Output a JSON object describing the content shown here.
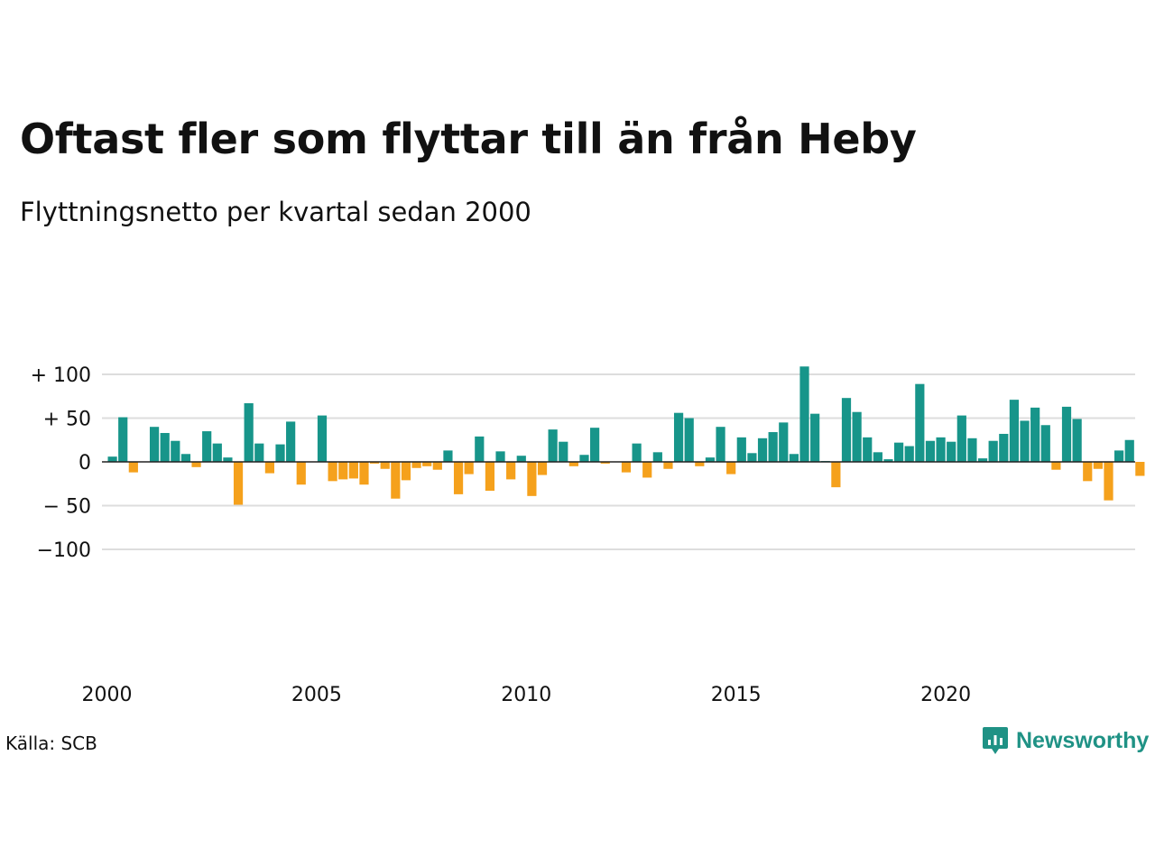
{
  "header": {
    "title": "Oftast fler som flyttar till än från Heby",
    "subtitle": "Flyttningsnetto per kvartal sedan 2000"
  },
  "footer": {
    "source": "Källa: SCB",
    "brand": "Newsworthy",
    "brand_icon": "newsworthy-logo-icon"
  },
  "colors": {
    "positive": "#17958a",
    "negative": "#f5a11c",
    "grid": "#dddddd",
    "brand": "#1f9285"
  },
  "chart_data": {
    "type": "bar",
    "title": "Oftast fler som flyttar till än från Heby",
    "subtitle": "Flyttningsnetto per kvartal sedan 2000",
    "ylim": [
      -100,
      100
    ],
    "yticks": [
      100,
      50,
      0,
      -50,
      -100
    ],
    "ytick_labels": [
      "+ 100",
      "+  50",
      "0",
      "− 50",
      "−100"
    ],
    "xticks": [
      2000,
      2005,
      2010,
      2015,
      2020
    ],
    "xtick_labels": [
      "2000",
      "2005",
      "2010",
      "2015",
      "2020"
    ],
    "grid": true,
    "legend": "none",
    "categories": [
      "2000-Q1",
      "2000-Q2",
      "2000-Q3",
      "2000-Q4",
      "2001-Q1",
      "2001-Q2",
      "2001-Q3",
      "2001-Q4",
      "2002-Q1",
      "2002-Q2",
      "2002-Q3",
      "2002-Q4",
      "2003-Q1",
      "2003-Q2",
      "2003-Q3",
      "2003-Q4",
      "2004-Q1",
      "2004-Q2",
      "2004-Q3",
      "2004-Q4",
      "2005-Q1",
      "2005-Q2",
      "2005-Q3",
      "2005-Q4",
      "2006-Q1",
      "2006-Q2",
      "2006-Q3",
      "2006-Q4",
      "2007-Q1",
      "2007-Q2",
      "2007-Q3",
      "2007-Q4",
      "2008-Q1",
      "2008-Q2",
      "2008-Q3",
      "2008-Q4",
      "2009-Q1",
      "2009-Q2",
      "2009-Q3",
      "2009-Q4",
      "2010-Q1",
      "2010-Q2",
      "2010-Q3",
      "2010-Q4",
      "2011-Q1",
      "2011-Q2",
      "2011-Q3",
      "2011-Q4",
      "2012-Q1",
      "2012-Q2",
      "2012-Q3",
      "2012-Q4",
      "2013-Q1",
      "2013-Q2",
      "2013-Q3",
      "2013-Q4",
      "2014-Q1",
      "2014-Q2",
      "2014-Q3",
      "2014-Q4",
      "2015-Q1",
      "2015-Q2",
      "2015-Q3",
      "2015-Q4",
      "2016-Q1",
      "2016-Q2",
      "2016-Q3",
      "2016-Q4",
      "2017-Q1",
      "2017-Q2",
      "2017-Q3",
      "2017-Q4",
      "2018-Q1",
      "2018-Q2",
      "2018-Q3",
      "2018-Q4",
      "2019-Q1",
      "2019-Q2",
      "2019-Q3",
      "2019-Q4",
      "2020-Q1",
      "2020-Q2",
      "2020-Q3",
      "2020-Q4",
      "2021-Q1",
      "2021-Q2",
      "2021-Q3",
      "2021-Q4",
      "2022-Q1",
      "2022-Q2",
      "2022-Q3",
      "2022-Q4",
      "2023-Q1",
      "2023-Q2",
      "2023-Q3",
      "2023-Q4",
      "2024-Q1",
      "2024-Q2",
      "2024-Q3"
    ],
    "values": [
      6,
      51,
      -12,
      0,
      40,
      33,
      24,
      9,
      -6,
      35,
      21,
      5,
      -49,
      67,
      21,
      -13,
      20,
      46,
      -26,
      0,
      53,
      -22,
      -20,
      -19,
      -26,
      -2,
      -8,
      -42,
      -21,
      -7,
      -5,
      -9,
      13,
      -37,
      -14,
      29,
      -33,
      12,
      -20,
      7,
      -39,
      -15,
      37,
      23,
      -5,
      8,
      39,
      -2,
      0,
      -12,
      21,
      -18,
      11,
      -8,
      56,
      50,
      -5,
      5,
      40,
      -14,
      28,
      10,
      27,
      34,
      45,
      9,
      109,
      55,
      1,
      -29,
      73,
      57,
      28,
      11,
      3,
      22,
      18,
      89,
      24,
      28,
      23,
      53,
      27,
      4,
      24,
      32,
      71,
      47,
      62,
      42,
      -9,
      63,
      49,
      -22,
      -8,
      -44,
      13,
      25,
      -16
    ]
  }
}
